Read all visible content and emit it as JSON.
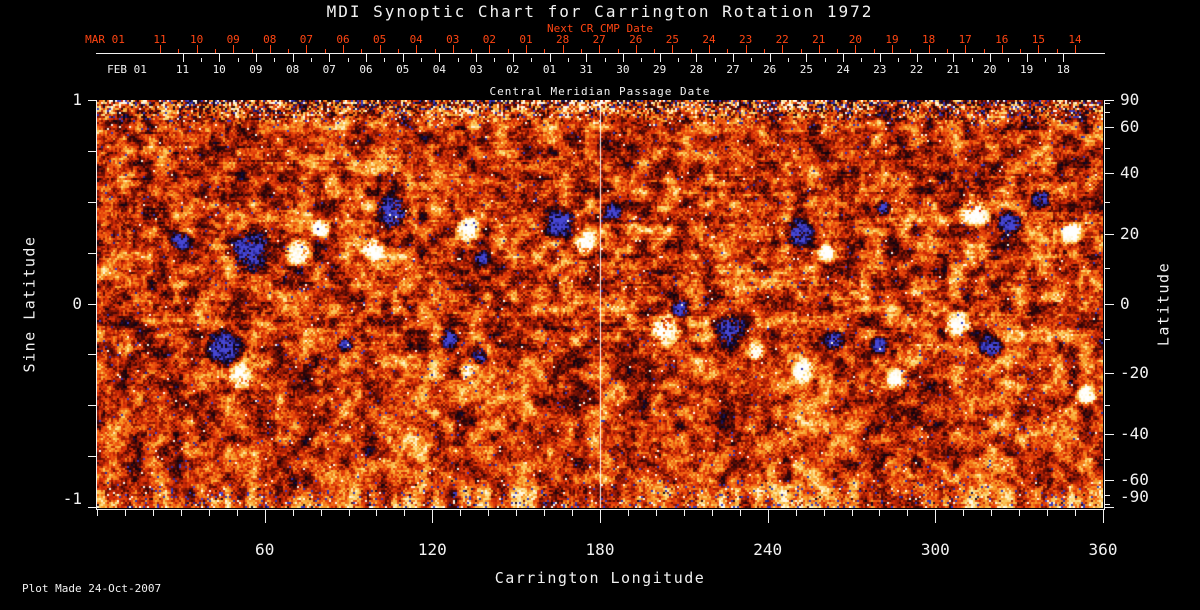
{
  "title": "MDI Synoptic Chart for Carrington Rotation 1972",
  "axes": {
    "next_cr": {
      "label": "Next CR CMP Date",
      "month_label": "MAR 01",
      "day_labels": [
        "11",
        "10",
        "09",
        "08",
        "07",
        "06",
        "05",
        "04",
        "03",
        "02",
        "01",
        "28",
        "27",
        "26",
        "25",
        "24",
        "23",
        "22",
        "21",
        "20",
        "19",
        "18",
        "17",
        "16",
        "15",
        "14"
      ],
      "color": "#ff4512"
    },
    "cmp": {
      "label": "Central Meridian Passage Date",
      "month_label": "FEB 01",
      "day_labels": [
        "11",
        "10",
        "09",
        "08",
        "07",
        "06",
        "05",
        "04",
        "03",
        "02",
        "01",
        "31",
        "30",
        "29",
        "28",
        "27",
        "26",
        "25",
        "24",
        "23",
        "22",
        "21",
        "20",
        "19",
        "18"
      ],
      "color": "#f2f2f2"
    },
    "left": {
      "label": "Sine Latitude",
      "tick_labels": [
        "1",
        "0",
        "-1"
      ],
      "tick_values": [
        1,
        0,
        -1
      ]
    },
    "right": {
      "label": "Latitude",
      "tick_labels": [
        "90",
        "60",
        "40",
        "20",
        "0",
        "-20",
        "-40",
        "-60",
        "-90"
      ],
      "tick_values": [
        90,
        60,
        40,
        20,
        0,
        -20,
        -40,
        -60,
        -90
      ]
    },
    "bottom": {
      "label": "Carrington Longitude",
      "tick_labels": [
        "60",
        "120",
        "180",
        "240",
        "300",
        "360"
      ],
      "tick_values": [
        60,
        120,
        180,
        240,
        300,
        360
      ]
    }
  },
  "footer": {
    "plot_made": "Plot Made 24-Oct-2007"
  },
  "chart_data": {
    "type": "heatmap",
    "title": "MDI Synoptic Chart for Carrington Rotation 1972",
    "carrington_rotation": 1972,
    "xlabel": "Carrington Longitude",
    "xlim": [
      0,
      360
    ],
    "x_major_ticks": [
      60,
      120,
      180,
      240,
      300,
      360
    ],
    "x_minor_tick_step": 10,
    "ylabel_left": "Sine Latitude",
    "ylim_sine": [
      -1,
      1
    ],
    "left_ticks_sine": [
      1,
      0.75,
      0.5,
      0.25,
      0,
      -0.25,
      -0.5,
      -0.75,
      -1
    ],
    "left_labeled_ticks": [
      1,
      0,
      -1
    ],
    "ylabel_right": "Latitude",
    "right_tick_step_deg": 10,
    "right_labeled_ticks_deg": [
      90,
      60,
      40,
      20,
      0,
      -20,
      -40,
      -60,
      -90
    ],
    "y_scale": "sine-latitude",
    "grid": {
      "vertical_line_longitude": 180,
      "horizontal_line_sine_latitude": 0,
      "color": "#ffffff"
    },
    "colormap_description": "Solar magnetogram: orange/red near zero field, white/yellow positive polarity, black/navy-blue negative polarity, speckled multicolor noise at polar (top/bottom) edges",
    "palette": {
      "zero_orange": "#d82e07",
      "orange": "#f05a10",
      "golden": "#f89c28",
      "pale_yellow": "#fcd66e",
      "near_white": "#fff8e0",
      "white": "#ffffff",
      "dark_red": "#8c1604",
      "maroon": "#460805",
      "black": "#0c0410",
      "navy": "#1e1a78",
      "bright_blue": "#4646d2",
      "axis_red": "#ff4512",
      "axis_white": "#f2f2f2",
      "background": "#000000"
    },
    "active_regions": [
      {
        "longitude": 30,
        "sine_latitude": 0.31,
        "polarity": -1,
        "radius_deg": 3.9
      },
      {
        "longitude": 55,
        "sine_latitude": 0.26,
        "polarity": -1,
        "radius_deg": 8.6
      },
      {
        "longitude": 72,
        "sine_latitude": 0.25,
        "polarity": 1,
        "radius_deg": 5.4
      },
      {
        "longitude": 80,
        "sine_latitude": 0.37,
        "polarity": 1,
        "radius_deg": 3.9
      },
      {
        "longitude": 106,
        "sine_latitude": 0.45,
        "polarity": -1,
        "radius_deg": 7.1
      },
      {
        "longitude": 99,
        "sine_latitude": 0.27,
        "polarity": 1,
        "radius_deg": 4.6
      },
      {
        "longitude": 133,
        "sine_latitude": 0.37,
        "polarity": 1,
        "radius_deg": 4.6
      },
      {
        "longitude": 138,
        "sine_latitude": 0.22,
        "polarity": -1,
        "radius_deg": 3.2
      },
      {
        "longitude": 165,
        "sine_latitude": 0.4,
        "polarity": -1,
        "radius_deg": 6.4
      },
      {
        "longitude": 175,
        "sine_latitude": 0.3,
        "polarity": 1,
        "radius_deg": 5.0
      },
      {
        "longitude": 184,
        "sine_latitude": 0.45,
        "polarity": -1,
        "radius_deg": 3.9
      },
      {
        "longitude": 251,
        "sine_latitude": 0.35,
        "polarity": -1,
        "radius_deg": 5.7
      },
      {
        "longitude": 261,
        "sine_latitude": 0.25,
        "polarity": 1,
        "radius_deg": 3.2
      },
      {
        "longitude": 281,
        "sine_latitude": 0.47,
        "polarity": -1,
        "radius_deg": 3.2
      },
      {
        "longitude": 314,
        "sine_latitude": 0.45,
        "polarity": 1,
        "radius_deg": 6.1
      },
      {
        "longitude": 327,
        "sine_latitude": 0.39,
        "polarity": -1,
        "radius_deg": 5.4
      },
      {
        "longitude": 338,
        "sine_latitude": 0.52,
        "polarity": -1,
        "radius_deg": 3.9
      },
      {
        "longitude": 349,
        "sine_latitude": 0.35,
        "polarity": 1,
        "radius_deg": 4.3
      },
      {
        "longitude": 46,
        "sine_latitude": -0.22,
        "polarity": -1,
        "radius_deg": 6.8
      },
      {
        "longitude": 51,
        "sine_latitude": -0.36,
        "polarity": 1,
        "radius_deg": 5.4
      },
      {
        "longitude": 89,
        "sine_latitude": -0.2,
        "polarity": -1,
        "radius_deg": 3.2
      },
      {
        "longitude": 126,
        "sine_latitude": -0.17,
        "polarity": -1,
        "radius_deg": 3.9
      },
      {
        "longitude": 137,
        "sine_latitude": -0.26,
        "polarity": -1,
        "radius_deg": 3.2
      },
      {
        "longitude": 132,
        "sine_latitude": -0.33,
        "polarity": 1,
        "radius_deg": 2.9
      },
      {
        "longitude": 203,
        "sine_latitude": -0.12,
        "polarity": 1,
        "radius_deg": 6.1
      },
      {
        "longitude": 209,
        "sine_latitude": -0.02,
        "polarity": -1,
        "radius_deg": 3.9
      },
      {
        "longitude": 226,
        "sine_latitude": -0.13,
        "polarity": -1,
        "radius_deg": 6.8
      },
      {
        "longitude": 236,
        "sine_latitude": -0.23,
        "polarity": 1,
        "radius_deg": 3.9
      },
      {
        "longitude": 253,
        "sine_latitude": -0.33,
        "polarity": 1,
        "radius_deg": 4.6
      },
      {
        "longitude": 264,
        "sine_latitude": -0.18,
        "polarity": -1,
        "radius_deg": 3.9
      },
      {
        "longitude": 286,
        "sine_latitude": -0.37,
        "polarity": 1,
        "radius_deg": 3.9
      },
      {
        "longitude": 280,
        "sine_latitude": -0.2,
        "polarity": -1,
        "radius_deg": 3.2
      },
      {
        "longitude": 308,
        "sine_latitude": -0.1,
        "polarity": 1,
        "radius_deg": 5.4
      },
      {
        "longitude": 320,
        "sine_latitude": -0.21,
        "polarity": -1,
        "radius_deg": 4.6
      },
      {
        "longitude": 354,
        "sine_latitude": -0.45,
        "polarity": 1,
        "radius_deg": 3.9
      }
    ]
  }
}
